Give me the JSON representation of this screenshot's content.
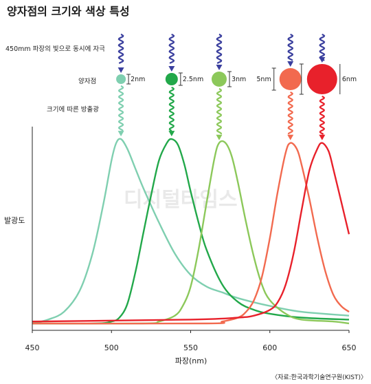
{
  "chart_data": {
    "type": "line",
    "title": "양자점의 크기와 색상 특성",
    "xlabel": "파장(nm)",
    "ylabel": "발광도",
    "xlim": [
      450,
      650
    ],
    "ylim": [
      0,
      1
    ],
    "x_ticks": [
      450,
      500,
      550,
      600,
      650
    ],
    "grid": false,
    "annotations": {
      "excitation": "450mm 파장의 빛으로 동시에 자극",
      "dot_label": "양자점",
      "emission_label": "크기에 따른 방출광"
    },
    "series": [
      {
        "size_label": "2nm",
        "color": "#7fcfb0",
        "dot_radius": 7,
        "x": [
          450,
          460,
          470,
          480,
          488,
          495,
          500,
          503,
          506,
          510,
          515,
          520,
          530,
          540,
          550,
          560,
          570,
          580,
          600,
          620,
          650
        ],
        "y": [
          0.0,
          0.02,
          0.06,
          0.17,
          0.36,
          0.62,
          0.84,
          0.93,
          0.95,
          0.9,
          0.8,
          0.7,
          0.52,
          0.36,
          0.25,
          0.19,
          0.16,
          0.13,
          0.09,
          0.06,
          0.04
        ]
      },
      {
        "size_label": "2.5nm",
        "color": "#22a84a",
        "dot_radius": 9,
        "x": [
          450,
          490,
          500,
          505,
          510,
          515,
          520,
          525,
          530,
          535,
          538,
          542,
          546,
          550,
          555,
          560,
          570,
          580,
          590,
          600,
          620,
          650
        ],
        "y": [
          0.0,
          0.0,
          0.01,
          0.03,
          0.1,
          0.26,
          0.46,
          0.66,
          0.84,
          0.93,
          0.95,
          0.92,
          0.82,
          0.68,
          0.52,
          0.38,
          0.2,
          0.11,
          0.07,
          0.05,
          0.03,
          0.02
        ]
      },
      {
        "size_label": "3nm",
        "color": "#8cc85a",
        "dot_radius": 11,
        "x": [
          450,
          520,
          530,
          540,
          545,
          550,
          555,
          560,
          565,
          568,
          572,
          576,
          580,
          585,
          590,
          595,
          600,
          610,
          620,
          640,
          650
        ],
        "y": [
          0.0,
          0.0,
          0.01,
          0.04,
          0.09,
          0.19,
          0.38,
          0.62,
          0.85,
          0.93,
          0.93,
          0.86,
          0.72,
          0.52,
          0.34,
          0.2,
          0.12,
          0.05,
          0.02,
          0.01,
          0.0
        ]
      },
      {
        "size_label": "5nm",
        "color": "#f26a4f",
        "dot_radius": 16,
        "x": [
          450,
          560,
          570,
          580,
          585,
          590,
          595,
          600,
          605,
          610,
          613,
          617,
          620,
          625,
          630,
          635,
          640,
          645,
          650
        ],
        "y": [
          0.0,
          0.0,
          0.01,
          0.03,
          0.06,
          0.12,
          0.24,
          0.44,
          0.68,
          0.88,
          0.93,
          0.9,
          0.82,
          0.64,
          0.44,
          0.27,
          0.15,
          0.09,
          0.06
        ]
      },
      {
        "size_label": "6nm",
        "color": "#e8212b",
        "dot_radius": 22,
        "x": [
          450,
          550,
          580,
          590,
          600,
          605,
          610,
          615,
          620,
          625,
          630,
          633,
          637,
          640,
          645,
          650
        ],
        "y": [
          0.01,
          0.02,
          0.03,
          0.04,
          0.07,
          0.11,
          0.2,
          0.36,
          0.58,
          0.79,
          0.9,
          0.93,
          0.89,
          0.8,
          0.63,
          0.46
        ]
      }
    ],
    "source": "〈자료:한국과학기술연구원(KIST)〉",
    "watermark": "디지털타임스"
  }
}
